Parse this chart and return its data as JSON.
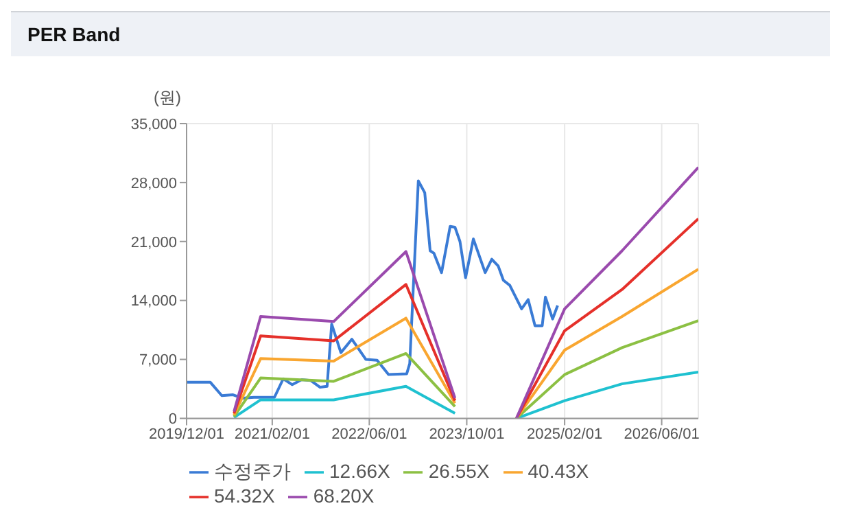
{
  "chart_data": {
    "type": "line",
    "title": "PER Band",
    "ylabel": "(원)",
    "xlim": [
      "2019-12-01",
      "2026-12-01"
    ],
    "xticks": [
      {
        "value": "2019-12-01",
        "label": "2019/12/01"
      },
      {
        "value": "2021-02-01",
        "label": "2021/02/01"
      },
      {
        "value": "2022-06-01",
        "label": "2022/06/01"
      },
      {
        "value": "2023-10-01",
        "label": "2023/10/01"
      },
      {
        "value": "2025-02-01",
        "label": "2025/02/01"
      },
      {
        "value": "2026-06-01",
        "label": "2026/06/01"
      }
    ],
    "ylim": [
      0,
      35000
    ],
    "yticks": [
      {
        "value": 0,
        "label": "0"
      },
      {
        "value": 7000,
        "label": "7,000"
      },
      {
        "value": 14000,
        "label": "14,000"
      },
      {
        "value": 21000,
        "label": "21,000"
      },
      {
        "value": 28000,
        "label": "28,000"
      },
      {
        "value": 35000,
        "label": "35,000"
      }
    ],
    "grid": true,
    "legend": "bottom",
    "marker": "none",
    "line_style": "solid",
    "series": [
      {
        "name": "수정주가",
        "color": "#3a7bd5",
        "x": [
          "2019-12-01",
          "2020-03-28",
          "2020-05-25",
          "2020-07-20",
          "2020-09-05",
          "2020-11-01",
          "2021-02-12",
          "2021-03-28",
          "2021-05-12",
          "2021-06-28",
          "2021-08-12",
          "2021-09-28",
          "2021-11-02",
          "2021-11-25",
          "2022-01-10",
          "2022-03-06",
          "2022-05-15",
          "2022-07-10",
          "2022-09-05",
          "2022-12-05",
          "2022-12-20",
          "2023-02-01",
          "2023-03-05",
          "2023-04-01",
          "2023-04-20",
          "2023-05-28",
          "2023-07-10",
          "2023-08-03",
          "2023-08-28",
          "2023-09-25",
          "2023-11-03",
          "2024-01-01",
          "2024-02-03",
          "2024-03-06",
          "2024-04-01",
          "2024-05-03",
          "2024-07-01",
          "2024-08-03",
          "2024-09-06",
          "2024-10-12",
          "2024-10-28",
          "2024-12-03",
          "2024-12-28"
        ],
        "values": [
          4300,
          4300,
          2700,
          2800,
          2400,
          2500,
          2500,
          4700,
          4000,
          4600,
          4500,
          3700,
          3800,
          11200,
          7800,
          9400,
          7000,
          6900,
          5200,
          5300,
          6500,
          28200,
          26800,
          19900,
          19600,
          17300,
          22800,
          22700,
          21000,
          16700,
          21300,
          17300,
          18900,
          18100,
          16400,
          15800,
          13000,
          14100,
          11000,
          11000,
          14400,
          11800,
          13400
        ]
      },
      {
        "name": "12.66X",
        "color": "#1fc1d0",
        "x": [
          "2020-07-25",
          "2020-12-05",
          "2021-12-05",
          "2022-12-01",
          "2023-08-03",
          "2024-01-01",
          "2024-06-05",
          "2025-02-01",
          "2025-11-15",
          "2026-12-01"
        ],
        "values": [
          100,
          2200,
          2200,
          3800,
          600,
          null,
          0,
          2100,
          4100,
          5500
        ]
      },
      {
        "name": "26.55X",
        "color": "#8cc043",
        "x": [
          "2020-07-25",
          "2020-12-05",
          "2021-12-05",
          "2022-12-01",
          "2023-08-03",
          "2024-01-01",
          "2024-06-05",
          "2025-02-01",
          "2025-11-15",
          "2026-12-01"
        ],
        "values": [
          200,
          4800,
          4400,
          7700,
          1400,
          null,
          0,
          5200,
          8400,
          11600
        ]
      },
      {
        "name": "40.43X",
        "color": "#f9a630",
        "x": [
          "2020-07-25",
          "2020-12-05",
          "2021-12-05",
          "2022-12-01",
          "2023-08-03",
          "2024-01-01",
          "2024-06-05",
          "2025-02-01",
          "2025-11-15",
          "2026-12-01"
        ],
        "values": [
          400,
          7100,
          6800,
          11900,
          1800,
          null,
          0,
          8100,
          12100,
          17700
        ]
      },
      {
        "name": "54.32X",
        "color": "#e5302a",
        "x": [
          "2020-07-25",
          "2020-12-05",
          "2021-12-05",
          "2022-12-01",
          "2023-08-03",
          "2024-01-01",
          "2024-06-05",
          "2025-02-01",
          "2025-11-15",
          "2026-12-01"
        ],
        "values": [
          600,
          9800,
          9200,
          15900,
          2100,
          null,
          0,
          10400,
          15300,
          23700
        ]
      },
      {
        "name": "68.20X",
        "color": "#9a4aad",
        "x": [
          "2020-07-25",
          "2020-12-05",
          "2021-12-05",
          "2022-12-01",
          "2023-08-03",
          "2024-01-01",
          "2024-06-05",
          "2025-02-01",
          "2025-11-15",
          "2026-12-01"
        ],
        "values": [
          800,
          12100,
          11500,
          19800,
          2400,
          null,
          0,
          13000,
          19900,
          29800
        ]
      }
    ]
  }
}
